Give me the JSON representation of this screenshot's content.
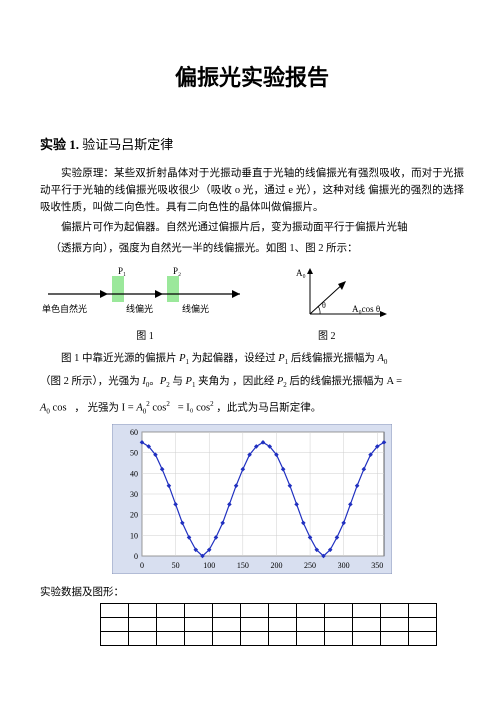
{
  "title": "偏振光实验报告",
  "section1": {
    "label": "实验 1.",
    "name": "验证马吕斯定律",
    "principle_label": "实验原理：",
    "principle_text": "某些双折射晶体对于光振动垂直于光轴的线偏振光有强烈吸收，而对于光振动平行于光轴的线偏振光吸收很少（吸收 o 光，通过 e 光），这种对线 偏振光的强烈的选择吸收性质，叫做二向色性。具有二向色性的晶体叫做偏振片。",
    "para2": "偏振片可作为起偏器。自然光通过偏振片后，变为振动面平行于偏振片光轴",
    "para3": "（透振方向），强度为自然光一半的线偏振光。如图 1、图 2 所示："
  },
  "diagram1": {
    "labels": {
      "P1": "P₁",
      "P2": "P₂"
    },
    "left_labels": [
      "单色自然光",
      "线偏光",
      "线偏光"
    ],
    "caption": "图 1",
    "polarizer_color": "#9be89b"
  },
  "diagram2": {
    "A0": "A₀",
    "theta": "θ",
    "Acos": "A₀cos θ",
    "caption": "图 2"
  },
  "text_after_diagrams": {
    "line1_a": "图 1 中靠近光源的偏振片 ",
    "line1_b": " 为起偏器，设经过 ",
    "line1_c": " 后线偏振光振幅为 ",
    "line2_a": "（图 2 所示），光强为 ",
    "line2_b": "。",
    "line2_c": " 与 ",
    "line2_d": " 夹角为 ",
    "line2_e": "，因此经 ",
    "line2_f": " 后的线偏振光振幅为 A =",
    "line3_a": "cos ",
    "line3_b": "， 光强为 I = ",
    "line3_c": " cos",
    "line3_d": "  = I₀ cos",
    "line3_e": " ，此式为马吕斯定律。",
    "P1": "P₁",
    "P2": "P₂",
    "A0": "A₀",
    "I0": "I₀",
    "A02": "A₀²",
    "sq": "²"
  },
  "chart": {
    "type": "line",
    "background_color": "#d8dff0",
    "plot_bg": "#ffffff",
    "grid_color": "#cfcfcf",
    "line_color": "#2030c0",
    "marker_color": "#2030c0",
    "marker": "diamond",
    "xlim": [
      0,
      360
    ],
    "ylim": [
      0,
      60
    ],
    "xtick_step": 50,
    "ytick_step": 10,
    "x_points": [
      0,
      10,
      20,
      30,
      40,
      50,
      60,
      70,
      80,
      90,
      100,
      110,
      120,
      130,
      140,
      150,
      160,
      170,
      180,
      190,
      200,
      210,
      220,
      230,
      240,
      250,
      260,
      270,
      280,
      290,
      300,
      310,
      320,
      330,
      340,
      350,
      360
    ],
    "y_points": [
      55,
      53,
      49,
      42,
      34,
      25,
      16,
      9,
      3,
      0,
      3,
      9,
      16,
      25,
      34,
      42,
      49,
      53,
      55,
      53,
      49,
      42,
      34,
      25,
      16,
      9,
      3,
      0,
      3,
      9,
      16,
      25,
      34,
      42,
      49,
      53,
      55
    ]
  },
  "data_section_label": "实验数据及图形：",
  "grid_rows": 3,
  "grid_cols": 12
}
